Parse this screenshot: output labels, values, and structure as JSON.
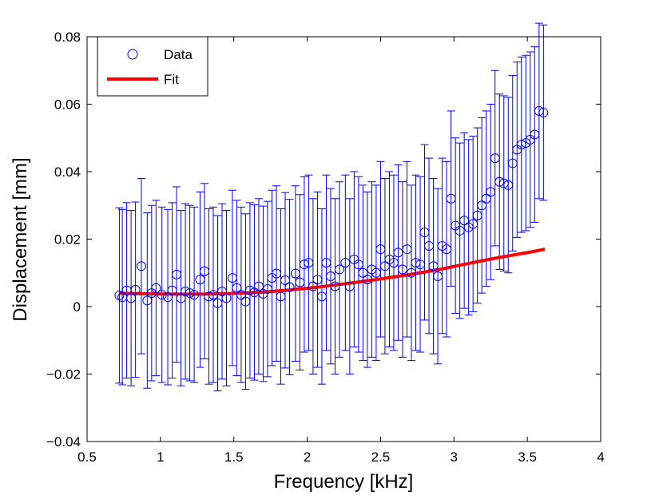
{
  "chart_data": {
    "type": "scatter",
    "title": "",
    "xlabel": "Frequency [kHz]",
    "ylabel": "Displacement [mm]",
    "xlim": [
      0.5,
      4
    ],
    "ylim": [
      -0.04,
      0.08
    ],
    "xticks": [
      0.5,
      1,
      1.5,
      2,
      2.5,
      3,
      3.5,
      4
    ],
    "xtick_labels": [
      "0.5",
      "1",
      "1.5",
      "2",
      "2.5",
      "3",
      "3.5",
      "4"
    ],
    "yticks": [
      -0.04,
      -0.02,
      0,
      0.02,
      0.04,
      0.06,
      0.08
    ],
    "ytick_labels": [
      "−0.04",
      "−0.02",
      "0",
      "0.02",
      "0.04",
      "0.06",
      "0.08"
    ],
    "grid": false,
    "legend": {
      "location": "top-left",
      "entries": [
        "Data",
        "Fit"
      ]
    },
    "colors": {
      "data": "#0000ff",
      "fit": "#ff0000"
    },
    "series": [
      {
        "name": "Data",
        "marker": "circle",
        "error_bar_halfwidth": 0.026,
        "x": [
          0.72,
          0.74,
          0.77,
          0.8,
          0.83,
          0.87,
          0.91,
          0.94,
          0.97,
          1.01,
          1.05,
          1.08,
          1.11,
          1.14,
          1.17,
          1.2,
          1.23,
          1.27,
          1.3,
          1.33,
          1.36,
          1.39,
          1.42,
          1.45,
          1.49,
          1.52,
          1.55,
          1.58,
          1.61,
          1.64,
          1.67,
          1.7,
          1.73,
          1.76,
          1.79,
          1.82,
          1.85,
          1.88,
          1.92,
          1.95,
          1.98,
          2.01,
          2.04,
          2.07,
          2.1,
          2.13,
          2.16,
          2.19,
          2.22,
          2.26,
          2.29,
          2.32,
          2.35,
          2.38,
          2.41,
          2.44,
          2.47,
          2.5,
          2.53,
          2.56,
          2.59,
          2.62,
          2.65,
          2.68,
          2.71,
          2.74,
          2.77,
          2.8,
          2.83,
          2.86,
          2.89,
          2.92,
          2.95,
          2.98,
          3.01,
          3.04,
          3.07,
          3.1,
          3.13,
          3.16,
          3.19,
          3.22,
          3.25,
          3.28,
          3.31,
          3.34,
          3.37,
          3.4,
          3.43,
          3.46,
          3.49,
          3.52,
          3.55,
          3.58,
          3.61
        ],
        "y": [
          0.0033,
          0.0028,
          0.0048,
          0.0025,
          0.005,
          0.012,
          0.0018,
          0.004,
          0.0055,
          0.0035,
          0.0028,
          0.0048,
          0.0095,
          0.0025,
          0.0045,
          0.004,
          0.0035,
          0.008,
          0.0105,
          0.003,
          0.0035,
          0.001,
          0.0045,
          0.0025,
          0.0085,
          0.0055,
          0.0035,
          0.0015,
          0.0048,
          0.0042,
          0.006,
          0.0038,
          0.0052,
          0.0085,
          0.0098,
          0.003,
          0.0078,
          0.0058,
          0.0098,
          0.0072,
          0.0125,
          0.013,
          0.006,
          0.008,
          0.003,
          0.013,
          0.009,
          0.006,
          0.011,
          0.013,
          0.006,
          0.014,
          0.0125,
          0.01,
          0.008,
          0.011,
          0.01,
          0.017,
          0.012,
          0.014,
          0.013,
          0.016,
          0.011,
          0.017,
          0.01,
          0.013,
          0.0125,
          0.022,
          0.018,
          0.012,
          0.009,
          0.018,
          0.017,
          0.032,
          0.024,
          0.0225,
          0.0255,
          0.0235,
          0.0245,
          0.027,
          0.03,
          0.032,
          0.034,
          0.044,
          0.037,
          0.0365,
          0.036,
          0.0425,
          0.0465,
          0.048,
          0.0485,
          0.0495,
          0.051,
          0.058,
          0.0575
        ]
      },
      {
        "name": "Fit",
        "x": [
          0.72,
          0.9,
          1.1,
          1.3,
          1.5,
          1.7,
          1.9,
          2.1,
          2.3,
          2.5,
          2.7,
          2.9,
          3.1,
          3.3,
          3.5,
          3.62
        ],
        "y": [
          0.004,
          0.0038,
          0.0037,
          0.0037,
          0.0039,
          0.0043,
          0.005,
          0.0059,
          0.007,
          0.0082,
          0.0095,
          0.011,
          0.0128,
          0.0145,
          0.016,
          0.017
        ]
      }
    ]
  }
}
